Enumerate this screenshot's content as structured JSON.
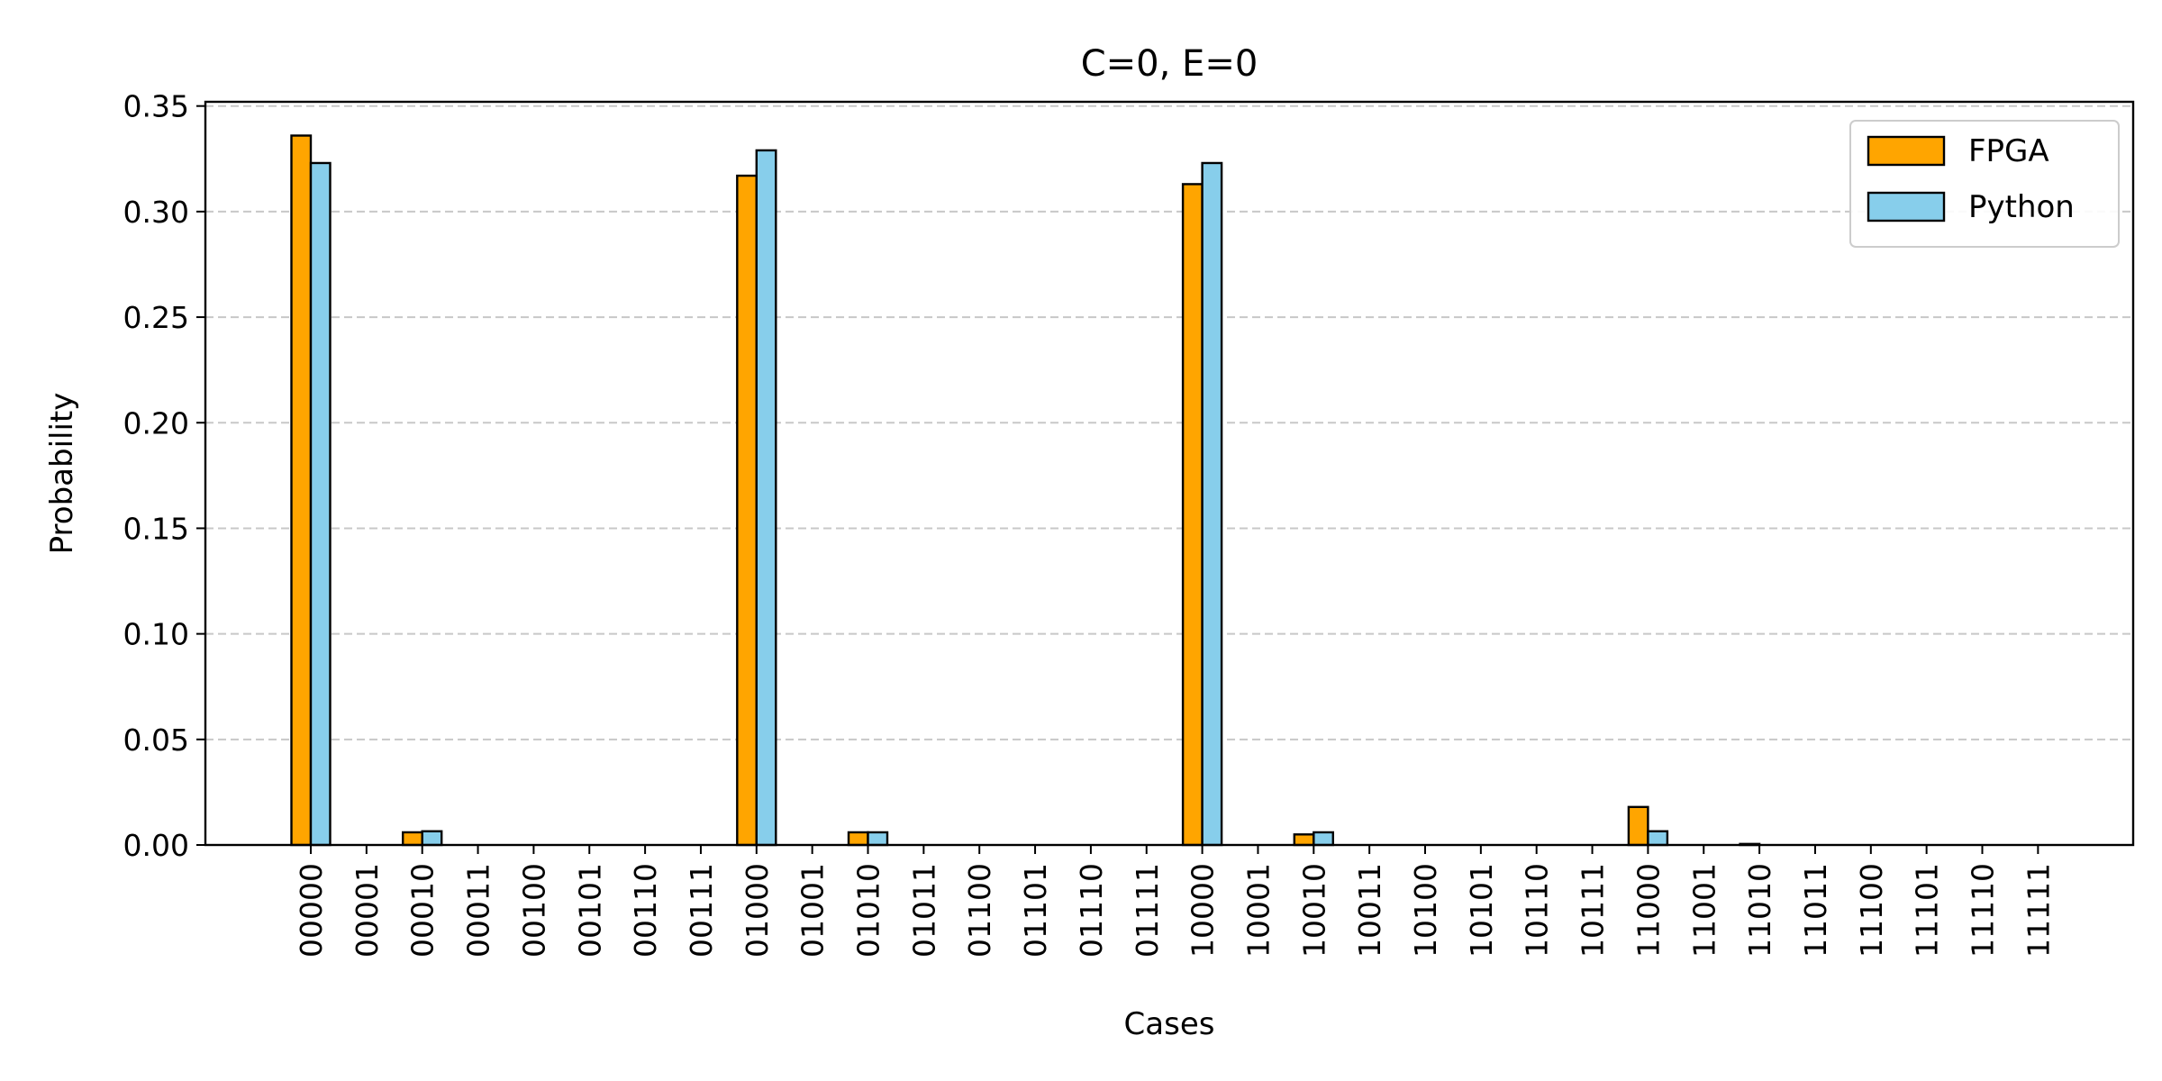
{
  "chart_data": {
    "type": "bar",
    "title": "C=0, E=0",
    "xlabel": "Cases",
    "ylabel": "Probability",
    "ylim": [
      0,
      0.352
    ],
    "yticks": [
      "0.00",
      "0.05",
      "0.10",
      "0.15",
      "0.20",
      "0.25",
      "0.30",
      "0.35"
    ],
    "grid": "y-dashed",
    "legend_position": "top-right",
    "categories": [
      "00000",
      "00001",
      "00010",
      "00011",
      "00100",
      "00101",
      "00110",
      "00111",
      "01000",
      "01001",
      "01010",
      "01011",
      "01100",
      "01101",
      "01110",
      "01111",
      "10000",
      "10001",
      "10010",
      "10011",
      "10100",
      "10101",
      "10110",
      "10111",
      "11000",
      "11001",
      "11010",
      "11011",
      "11100",
      "11101",
      "11110",
      "11111"
    ],
    "series": [
      {
        "name": "FPGA",
        "color": "#FFA500",
        "values": [
          0.336,
          0.0,
          0.006,
          0.0,
          0.0,
          0.0,
          0.0,
          0.0,
          0.317,
          0.0,
          0.006,
          0.0,
          0.0,
          0.0,
          0.0,
          0.0,
          0.313,
          0.0,
          0.005,
          0.0,
          0.0,
          0.0,
          0.0,
          0.0,
          0.018,
          0.0,
          0.0005,
          0.0,
          0.0,
          0.0,
          0.0,
          0.0
        ]
      },
      {
        "name": "Python",
        "color": "#87CEEB",
        "values": [
          0.323,
          0.0,
          0.0065,
          0.0,
          0.0,
          0.0,
          0.0,
          0.0,
          0.329,
          0.0,
          0.006,
          0.0,
          0.0,
          0.0,
          0.0,
          0.0,
          0.323,
          0.0,
          0.006,
          0.0,
          0.0,
          0.0,
          0.0,
          0.0,
          0.0065,
          0.0,
          0.0,
          0.0,
          0.0,
          0.0,
          0.0,
          0.0
        ]
      }
    ]
  }
}
